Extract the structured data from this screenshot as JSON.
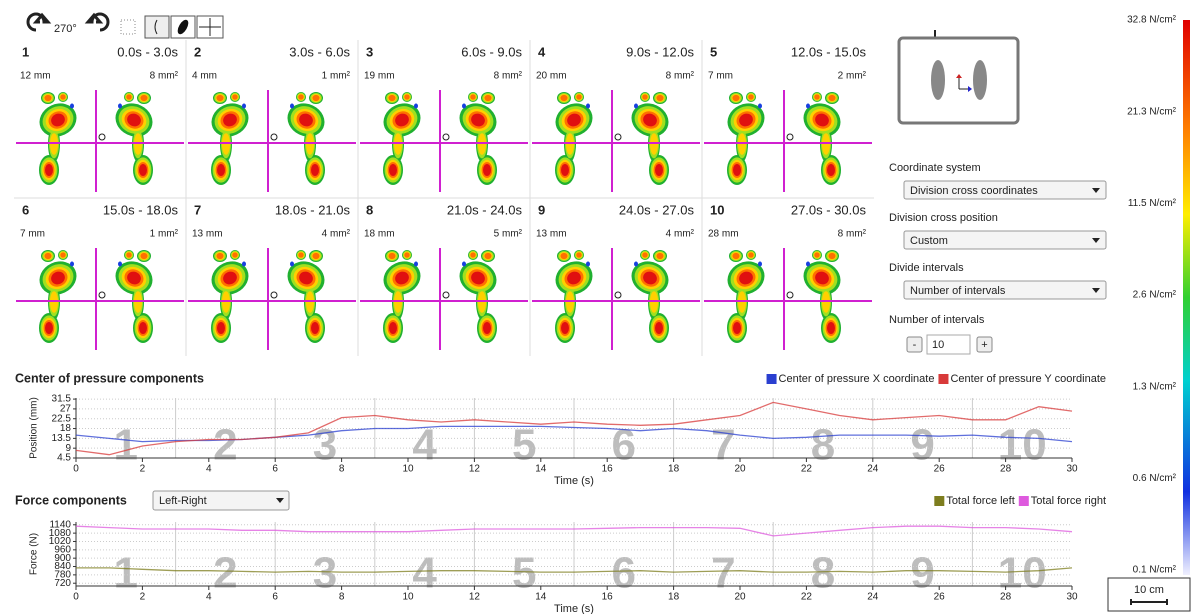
{
  "toolbar": {
    "rotation": "270°"
  },
  "panels": [
    {
      "number": "1",
      "time": "0.0s - 3.0s",
      "distance": "12 mm",
      "area": "8 mm²"
    },
    {
      "number": "2",
      "time": "3.0s - 6.0s",
      "distance": "4 mm",
      "area": "1 mm²"
    },
    {
      "number": "3",
      "time": "6.0s - 9.0s",
      "distance": "19 mm",
      "area": "8 mm²"
    },
    {
      "number": "4",
      "time": "9.0s - 12.0s",
      "distance": "20 mm",
      "area": "8 mm²"
    },
    {
      "number": "5",
      "time": "12.0s - 15.0s",
      "distance": "7 mm",
      "area": "2 mm²"
    },
    {
      "number": "6",
      "time": "15.0s - 18.0s",
      "distance": "7 mm",
      "area": "1 mm²"
    },
    {
      "number": "7",
      "time": "18.0s - 21.0s",
      "distance": "13 mm",
      "area": "4 mm²"
    },
    {
      "number": "8",
      "time": "21.0s - 24.0s",
      "distance": "18 mm",
      "area": "5 mm²"
    },
    {
      "number": "9",
      "time": "24.0s - 27.0s",
      "distance": "13 mm",
      "area": "4 mm²"
    },
    {
      "number": "10",
      "time": "27.0s - 30.0s",
      "distance": "28 mm",
      "area": "8 mm²"
    }
  ],
  "controls": {
    "coordinate_system": {
      "label": "Coordinate system",
      "value": "Division cross coordinates"
    },
    "division_cross_position": {
      "label": "Division cross position",
      "value": "Custom"
    },
    "divide_intervals": {
      "label": "Divide intervals",
      "value": "Number of intervals"
    },
    "number_of_intervals": {
      "label": "Number of intervals",
      "minus": "-",
      "value": "10",
      "plus": "+"
    }
  },
  "color_scale": {
    "labels": [
      "32.8 N/cm²",
      "21.3 N/cm²",
      "11.5 N/cm²",
      "2.6 N/cm²",
      "1.3 N/cm²",
      "0.6 N/cm²",
      "0.1 N/cm²"
    ]
  },
  "scale_bar": "10 cm",
  "force_selector": "Left-Right",
  "chart_data": [
    {
      "type": "line",
      "title": "Center of pressure components",
      "x_label": "Time (s)",
      "y_label": "Position (mm)",
      "x": [
        0,
        1,
        2,
        3,
        4,
        5,
        6,
        7,
        8,
        9,
        10,
        11,
        12,
        13,
        14,
        15,
        16,
        17,
        18,
        19,
        20,
        21,
        22,
        23,
        24,
        25,
        26,
        27,
        28,
        29,
        30
      ],
      "series": [
        {
          "name": "Center of pressure X coordinate",
          "color": "#2a3fd0",
          "values": [
            15,
            13.5,
            12,
            12.5,
            12.5,
            13,
            14,
            15,
            17,
            18,
            18,
            19,
            19,
            19,
            19,
            18.5,
            18,
            17,
            18,
            17,
            15,
            13.5,
            14,
            15,
            15,
            15,
            14.5,
            15,
            14,
            13.5,
            12
          ]
        },
        {
          "name": "Center of pressure Y coordinate",
          "color": "#d83a3a",
          "values": [
            8,
            6,
            10,
            12,
            13,
            13,
            14,
            16,
            23,
            24,
            22,
            21,
            22,
            21,
            20,
            21,
            20,
            19.5,
            20,
            22,
            24,
            30,
            27,
            24,
            22,
            23,
            24,
            22,
            22,
            28,
            26
          ]
        }
      ],
      "xlim": [
        0,
        30
      ],
      "xticks": [
        0,
        2,
        4,
        6,
        8,
        10,
        12,
        14,
        16,
        18,
        20,
        22,
        24,
        26,
        28,
        30
      ],
      "ylim": [
        4.5,
        32
      ],
      "yticks": [
        4.5,
        9,
        13.5,
        18,
        22.5,
        27,
        31.5
      ],
      "grid": true,
      "legend": "top-right",
      "interval_labels": [
        "1",
        "2",
        "3",
        "4",
        "5",
        "6",
        "7",
        "8",
        "9",
        "10"
      ]
    },
    {
      "type": "line",
      "title": "Force components",
      "x_label": "Time (s)",
      "y_label": "Force (N)",
      "x": [
        0,
        1,
        2,
        3,
        4,
        5,
        6,
        7,
        8,
        9,
        10,
        11,
        12,
        13,
        14,
        15,
        16,
        17,
        18,
        19,
        20,
        21,
        22,
        23,
        24,
        25,
        26,
        27,
        28,
        29,
        30
      ],
      "series": [
        {
          "name": "Total force left",
          "color": "#7d7d1e",
          "values": [
            830,
            830,
            820,
            810,
            810,
            805,
            800,
            805,
            800,
            800,
            805,
            810,
            810,
            805,
            800,
            800,
            805,
            810,
            800,
            805,
            810,
            800,
            800,
            805,
            800,
            810,
            810,
            805,
            800,
            810,
            830
          ]
        },
        {
          "name": "Total force right",
          "color": "#de5ade",
          "values": [
            1130,
            1120,
            1110,
            1110,
            1110,
            1100,
            1100,
            1090,
            1090,
            1090,
            1090,
            1100,
            1110,
            1110,
            1110,
            1110,
            1115,
            1120,
            1120,
            1120,
            1115,
            1060,
            1080,
            1100,
            1120,
            1130,
            1130,
            1120,
            1120,
            1110,
            1090
          ]
        }
      ],
      "xlim": [
        0,
        30
      ],
      "xticks": [
        0,
        2,
        4,
        6,
        8,
        10,
        12,
        14,
        16,
        18,
        20,
        22,
        24,
        26,
        28,
        30
      ],
      "ylim": [
        700,
        1160
      ],
      "yticks": [
        720,
        780,
        840,
        900,
        960,
        1020,
        1080,
        1140
      ],
      "grid": true,
      "legend": "top-right",
      "interval_labels": [
        "1",
        "2",
        "3",
        "4",
        "5",
        "6",
        "7",
        "8",
        "9",
        "10"
      ]
    }
  ]
}
